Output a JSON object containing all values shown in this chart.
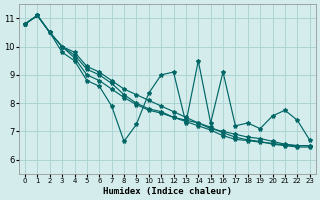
{
  "xlabel": "Humidex (Indice chaleur)",
  "bg_color": "#d4ecec",
  "grid_color": "#aed4d4",
  "line_color": "#006666",
  "xlim": [
    -0.5,
    23.5
  ],
  "ylim": [
    5.5,
    11.5
  ],
  "yticks": [
    6,
    7,
    8,
    9,
    10,
    11
  ],
  "xticks": [
    0,
    1,
    2,
    3,
    4,
    5,
    6,
    7,
    8,
    9,
    10,
    11,
    12,
    13,
    14,
    15,
    16,
    17,
    18,
    19,
    20,
    21,
    22,
    23
  ],
  "series": [
    [
      10.8,
      11.1,
      10.5,
      9.8,
      9.5,
      8.8,
      8.6,
      7.9,
      6.65,
      7.25,
      8.35,
      9.0,
      9.1,
      7.3,
      9.5,
      7.3,
      9.1,
      7.2,
      7.3,
      7.1,
      7.55,
      7.75,
      7.4,
      6.7
    ],
    [
      10.8,
      11.1,
      10.5,
      10.0,
      9.8,
      9.3,
      9.1,
      8.8,
      8.5,
      8.3,
      8.1,
      7.9,
      7.7,
      7.5,
      7.3,
      7.1,
      7.0,
      6.9,
      6.8,
      6.75,
      6.65,
      6.55,
      6.5,
      6.5
    ],
    [
      10.8,
      11.1,
      10.5,
      10.0,
      9.7,
      9.2,
      9.0,
      8.7,
      8.3,
      8.0,
      7.8,
      7.7,
      7.5,
      7.4,
      7.3,
      7.15,
      6.95,
      6.8,
      6.7,
      6.65,
      6.55,
      6.5,
      6.45,
      6.45
    ],
    [
      10.8,
      11.1,
      10.5,
      10.0,
      9.6,
      9.0,
      8.8,
      8.5,
      8.2,
      7.95,
      7.75,
      7.65,
      7.5,
      7.35,
      7.2,
      7.05,
      6.85,
      6.72,
      6.68,
      6.62,
      6.58,
      6.52,
      6.5,
      6.5
    ]
  ]
}
